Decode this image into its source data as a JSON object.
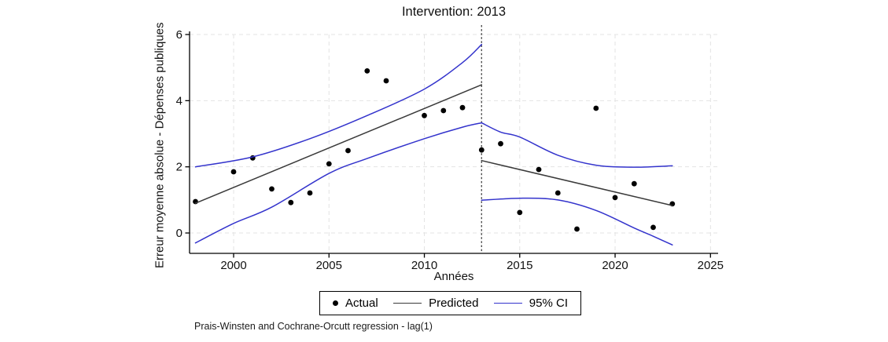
{
  "title": "Intervention: 2013",
  "footnote": "Prais-Winsten and Cochrane-Orcutt regression - lag(1)",
  "legend": {
    "actual": "Actual",
    "predicted": "Predicted",
    "ci": "95% CI"
  },
  "colors": {
    "actual": "#000000",
    "predicted": "#3a3a3a",
    "ci": "#3333cc",
    "grid": "#e3e3e3",
    "axis": "#000000",
    "intervention_line": "#4d4d4d"
  },
  "chart_data": {
    "type": "scatter",
    "title": "Intervention: 2013",
    "xlabel": "Années",
    "ylabel": "Erreur moyenne absolue - Dépenses publiques",
    "xlim": [
      1997.69,
      2025.4
    ],
    "ylim": [
      -0.616,
      6.0
    ],
    "x_ticks": [
      2000,
      2005,
      2010,
      2015,
      2020,
      2025
    ],
    "y_ticks": [
      0,
      2,
      4,
      6
    ],
    "grid": true,
    "legend_position": "bottom",
    "intervention_x": 2013,
    "series": [
      {
        "name": "Actual",
        "type": "scatter",
        "color": "#000000",
        "points": [
          [
            1998,
            0.95
          ],
          [
            2000,
            1.85
          ],
          [
            2001,
            2.27
          ],
          [
            2002,
            1.33
          ],
          [
            2003,
            0.92
          ],
          [
            2004,
            1.21
          ],
          [
            2005,
            2.09
          ],
          [
            2006,
            2.49
          ],
          [
            2007,
            4.9
          ],
          [
            2008,
            4.6
          ],
          [
            2010,
            3.55
          ],
          [
            2011,
            3.7
          ],
          [
            2012,
            3.79
          ],
          [
            2013,
            2.51
          ],
          [
            2014,
            2.7
          ],
          [
            2015,
            0.62
          ],
          [
            2016,
            1.92
          ],
          [
            2017,
            1.21
          ],
          [
            2018,
            0.12
          ],
          [
            2019,
            3.77
          ],
          [
            2020,
            1.07
          ],
          [
            2021,
            1.49
          ],
          [
            2022,
            0.17
          ],
          [
            2023,
            0.88
          ]
        ]
      },
      {
        "name": "Predicted (pre-intervention)",
        "type": "line",
        "color": "#3a3a3a",
        "points": [
          [
            1998,
            0.9
          ],
          [
            2013,
            4.48
          ]
        ]
      },
      {
        "name": "Predicted (post-intervention)",
        "type": "line",
        "color": "#3a3a3a",
        "points": [
          [
            2013,
            2.19
          ],
          [
            2023,
            0.83
          ]
        ]
      },
      {
        "name": "95% CI upper (pre-intervention)",
        "type": "line",
        "color": "#3333cc",
        "points": [
          [
            1998,
            2.0
          ],
          [
            2001,
            2.3
          ],
          [
            2004,
            2.85
          ],
          [
            2007,
            3.55
          ],
          [
            2010,
            4.35
          ],
          [
            2012,
            5.15
          ],
          [
            2013,
            5.7
          ]
        ]
      },
      {
        "name": "95% CI lower (pre-intervention)",
        "type": "line",
        "color": "#3333cc",
        "points": [
          [
            1998,
            -0.3
          ],
          [
            2000,
            0.29
          ],
          [
            2002,
            0.78
          ],
          [
            2005,
            1.8
          ],
          [
            2007,
            2.25
          ],
          [
            2010,
            2.85
          ],
          [
            2012,
            3.2
          ],
          [
            2013,
            3.33
          ]
        ]
      },
      {
        "name": "95% CI upper (post-intervention)",
        "type": "line",
        "color": "#3333cc",
        "points": [
          [
            2013,
            3.33
          ],
          [
            2014,
            3.05
          ],
          [
            2015,
            2.9
          ],
          [
            2017,
            2.35
          ],
          [
            2019,
            2.05
          ],
          [
            2021,
            1.99
          ],
          [
            2023,
            2.03
          ]
        ]
      },
      {
        "name": "95% CI lower (post-intervention)",
        "type": "line",
        "color": "#3333cc",
        "points": [
          [
            2013,
            0.99
          ],
          [
            2015,
            1.05
          ],
          [
            2017,
            1.0
          ],
          [
            2019,
            0.68
          ],
          [
            2021,
            0.15
          ],
          [
            2022,
            -0.1
          ],
          [
            2023,
            -0.36
          ]
        ]
      }
    ]
  }
}
